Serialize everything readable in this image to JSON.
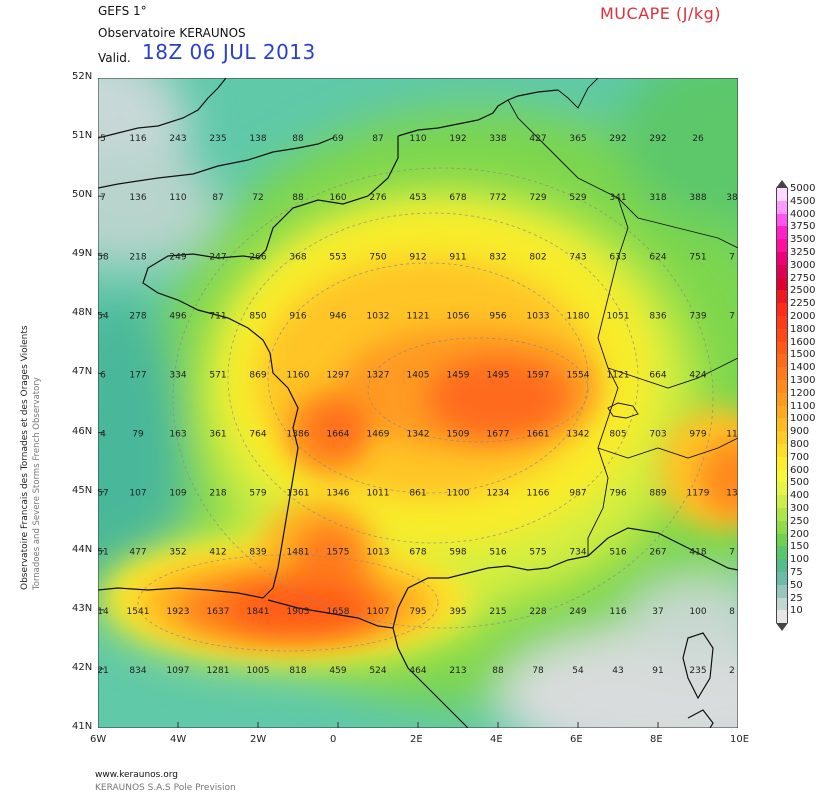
{
  "header": {
    "model": "GEFS 1°",
    "organization": "Observatoire KERAUNOS",
    "valid_label": "Valid.",
    "valid_time": "18Z 06 JUL 2013",
    "parameter": "MUCAPE (J/kg)"
  },
  "side_text": {
    "line1": "Observatoire Francais des Tornades et des Orages Violents",
    "line2": "Tornadoes and Severe Storms French Observatory"
  },
  "footer": {
    "url": "www.keraunos.org",
    "company": "KERAUNOS S.A.S Pole Prevision"
  },
  "map": {
    "lat_labels": [
      "52N",
      "51N",
      "50N",
      "49N",
      "48N",
      "47N",
      "46N",
      "45N",
      "44N",
      "43N",
      "42N",
      "41N"
    ],
    "lon_labels": [
      "6W",
      "4W",
      "2W",
      "0",
      "2E",
      "4E",
      "6E",
      "8E",
      "10E"
    ],
    "grid_values": [
      [
        "5",
        "116",
        "243",
        "235",
        "138",
        "88",
        "69",
        "87",
        "110",
        "192",
        "338",
        "427",
        "365",
        "292",
        "292",
        "26"
      ],
      [
        "7",
        "136",
        "110",
        "87",
        "72",
        "88",
        "160",
        "276",
        "453",
        "678",
        "772",
        "729",
        "529",
        "341",
        "318",
        "388",
        "38"
      ],
      [
        "58",
        "218",
        "249",
        "247",
        "266",
        "368",
        "553",
        "750",
        "912",
        "911",
        "832",
        "802",
        "743",
        "633",
        "624",
        "751",
        "7"
      ],
      [
        "54",
        "278",
        "496",
        "711",
        "850",
        "916",
        "946",
        "1032",
        "1121",
        "1056",
        "956",
        "1033",
        "1180",
        "1051",
        "836",
        "739",
        "7"
      ],
      [
        "6",
        "177",
        "334",
        "571",
        "869",
        "1160",
        "1297",
        "1327",
        "1405",
        "1459",
        "1495",
        "1597",
        "1554",
        "1121",
        "664",
        "424"
      ],
      [
        "4",
        "79",
        "163",
        "361",
        "764",
        "1386",
        "1664",
        "1469",
        "1342",
        "1509",
        "1677",
        "1661",
        "1342",
        "805",
        "703",
        "979",
        "11"
      ],
      [
        "57",
        "107",
        "109",
        "218",
        "579",
        "1361",
        "1346",
        "1011",
        "861",
        "1100",
        "1234",
        "1166",
        "987",
        "796",
        "889",
        "1179",
        "13"
      ],
      [
        "51",
        "477",
        "352",
        "412",
        "839",
        "1481",
        "1575",
        "1013",
        "678",
        "598",
        "516",
        "575",
        "734",
        "516",
        "267",
        "418",
        "7"
      ],
      [
        "14",
        "1541",
        "1923",
        "1637",
        "1841",
        "1903",
        "1658",
        "1107",
        "795",
        "395",
        "215",
        "228",
        "249",
        "116",
        "37",
        "100",
        "8"
      ],
      [
        "21",
        "834",
        "1097",
        "1281",
        "1005",
        "818",
        "459",
        "524",
        "464",
        "213",
        "88",
        "78",
        "54",
        "43",
        "91",
        "235",
        "2"
      ]
    ]
  },
  "legend": {
    "labels": [
      "5000",
      "4500",
      "4000",
      "3750",
      "3500",
      "3250",
      "3000",
      "2750",
      "2500",
      "2250",
      "2000",
      "1800",
      "1600",
      "1500",
      "1400",
      "1300",
      "1200",
      "1100",
      "1000",
      "900",
      "800",
      "700",
      "600",
      "500",
      "400",
      "300",
      "250",
      "200",
      "150",
      "100",
      "75",
      "50",
      "25",
      "10"
    ],
    "colors": [
      "#ffd8ff",
      "#ff99ff",
      "#ff55f0",
      "#ff22c8",
      "#ff11a0",
      "#ee0077",
      "#dd0055",
      "#e00030",
      "#ee1820",
      "#ff2a1a",
      "#ff3a18",
      "#ff4a16",
      "#ff5a18",
      "#ff6a1a",
      "#ff7a1c",
      "#ff8a1e",
      "#ff9a20",
      "#ffaa22",
      "#ffba24",
      "#ffcc26",
      "#ffdc28",
      "#ffec2c",
      "#f8f83a",
      "#e6f44a",
      "#cdee4a",
      "#aee64a",
      "#8edc4a",
      "#6ed24e",
      "#58c86a",
      "#54bc8a",
      "#6cbaa8",
      "#98c6be",
      "#c2d6d2",
      "#e6e6e6"
    ],
    "arrow_colors": {
      "top": "#ffffff",
      "bottom": "#ffffff"
    }
  }
}
